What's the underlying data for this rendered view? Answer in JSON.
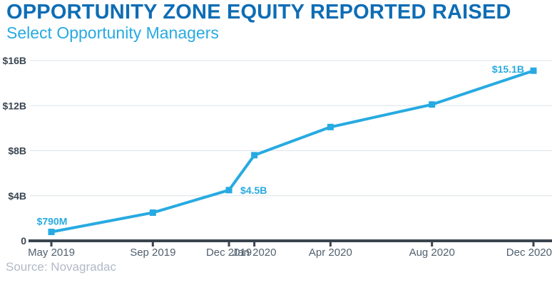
{
  "header": {
    "title": "OPPORTUNITY ZONE EQUITY REPORTED RAISED",
    "subtitle": "Select Opportunity Managers"
  },
  "source_note": "Source: Novagradac",
  "colors": {
    "title_blue": "#0e6db5",
    "accent_cyan": "#27aae1",
    "axis_dark": "#3a444f",
    "grid_gray": "#dde2e8",
    "x_label_gray": "#51606f",
    "y_label_dark": "#3b4754",
    "source_gray": "#b1bac6"
  },
  "chart_data": {
    "type": "line",
    "title": "OPPORTUNITY ZONE EQUITY REPORTED RAISED",
    "subtitle": "Select Opportunity Managers",
    "series_name": "Opportunity zone equity reported raised ($B)",
    "x": [
      "May 2019",
      "Sep 2019",
      "Dec 2019",
      "Jan 2020",
      "Apr 2020",
      "Aug 2020",
      "Dec 2020"
    ],
    "month_offsets": [
      0,
      4,
      7,
      8,
      11,
      15,
      19
    ],
    "values_billions": [
      0.79,
      2.5,
      4.5,
      7.6,
      10.1,
      12.1,
      15.1
    ],
    "point_labels": [
      "$790M",
      "",
      "$4.5B",
      "",
      "",
      "",
      "$15.1B"
    ],
    "point_label_positions": [
      "above",
      "",
      "right",
      "",
      "",
      "",
      "left"
    ],
    "xlabel": "",
    "ylabel": "",
    "ylim": [
      0,
      16
    ],
    "y_ticks": [
      {
        "label": "$16B",
        "value": 16
      },
      {
        "label": "$12B",
        "value": 12
      },
      {
        "label": "$8B",
        "value": 8
      },
      {
        "label": "$4B",
        "value": 4
      },
      {
        "label": "0",
        "value": 0
      }
    ],
    "grid": true,
    "legend": false,
    "marker": "square",
    "line_color": "#27aae1"
  }
}
